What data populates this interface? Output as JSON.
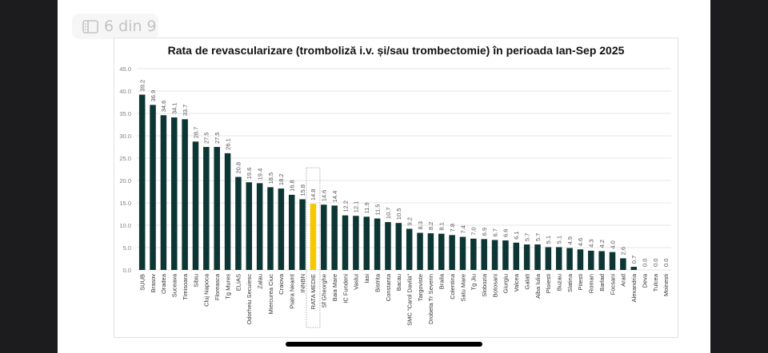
{
  "viewer": {
    "page_indicator": "6 din 9",
    "page_icon": "sidebar-panel-icon"
  },
  "colors": {
    "bar": "#0c3633",
    "highlight_bar": "#f5c800",
    "grid": "#e4e4e4",
    "tick_text": "#808080",
    "label_text": "#333333"
  },
  "chart_data": {
    "type": "bar",
    "title": "Rata de revascularizare (tromboliză i.v. și/sau trombectomie) în perioada Ian-Sep 2025",
    "xlabel": "",
    "ylabel": "",
    "ylim": [
      0,
      45
    ],
    "yticks": [
      "0.0",
      "5.0",
      "10.0",
      "15.0",
      "20.0",
      "25.0",
      "30.0",
      "35.0",
      "40.0",
      "45.0"
    ],
    "grid": true,
    "legend": "none",
    "highlight_category": "RATA MEDIE",
    "categories": [
      "SUUB",
      "Brasov",
      "Oradea",
      "Suceava",
      "Timisoara",
      "Sibiu",
      "Cluj Napoca",
      "Floreasca",
      "Tg Mures",
      "ELIAS",
      "Odorheiu Secuiesc",
      "Zalau",
      "Miercurea Ciuc",
      "Craiova",
      "Piatra Neamt",
      "INNBN",
      "RATA MEDIE",
      "Sf Gheorghe",
      "Baia Mare",
      "IC Fundeni",
      "Vaslui",
      "Iasi",
      "Bistrita",
      "Constanta",
      "Bacau",
      "SMC \"Carol Davila\"",
      "Targoviste",
      "Drobeta Tr Severin",
      "Braila",
      "Colentina",
      "Satu Mare",
      "Tg Jiu",
      "Slobozia",
      "Botosani",
      "Giurgiu",
      "Valcea",
      "Galati",
      "Alba Iulia",
      "Ploiesti",
      "Buzau",
      "Slatina",
      "Pitesti",
      "Roman",
      "Barlad",
      "Focsani",
      "Arad",
      "Alexandria",
      "Deva",
      "Tulcea",
      "Moinesti"
    ],
    "values": [
      39.2,
      36.9,
      34.6,
      34.1,
      33.7,
      28.7,
      27.5,
      27.5,
      26.1,
      20.8,
      19.6,
      19.4,
      18.5,
      18.2,
      16.8,
      15.8,
      14.8,
      14.6,
      14.4,
      12.2,
      12.1,
      11.9,
      11.5,
      10.7,
      10.5,
      9.2,
      8.3,
      8.2,
      8.1,
      7.8,
      7.4,
      7.0,
      6.9,
      6.7,
      6.6,
      6.1,
      5.7,
      5.7,
      5.1,
      5.1,
      4.9,
      4.6,
      4.3,
      4.2,
      4.0,
      2.6,
      0.7,
      0.0,
      0.0,
      0.0
    ],
    "value_labels": [
      "39.2",
      "36.9",
      "34.6",
      "34.1",
      "33.7",
      "28.7",
      "27.5",
      "27.5",
      "26.1",
      "20.8",
      "19.6",
      "19.4",
      "18.5",
      "18.2",
      "16.8",
      "15.8",
      "14.8",
      "14.6",
      "14.4",
      "12.2",
      "12.1",
      "11.9",
      "11.5",
      "10.7",
      "10.5",
      "9.2",
      "8.3",
      "8.2",
      "8.1",
      "7.8",
      "7.4",
      "7.0",
      "6.9",
      "6.7",
      "6.6",
      "6.1",
      "5.7",
      "5.7",
      "5.1",
      "5.1",
      "4.9",
      "4.6",
      "4.3",
      "4.2",
      "4.0",
      "2.6",
      "0.7",
      "0.0",
      "0.0",
      "0.0"
    ]
  }
}
